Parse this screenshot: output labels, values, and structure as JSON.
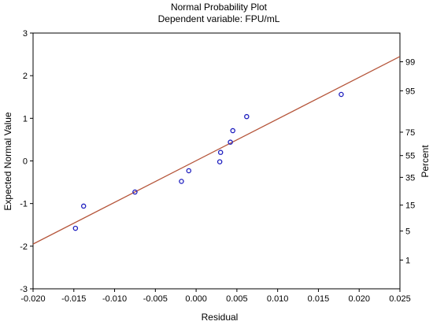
{
  "chart_data": {
    "type": "scatter",
    "title": "Normal Probability Plot",
    "subtitle": "Dependent variable: FPU/mL",
    "xlabel": "Residual",
    "ylabel": "Expected Normal Value",
    "ylabel_right": "Percent",
    "xlim": [
      -0.02,
      0.025
    ],
    "ylim": [
      -3,
      3
    ],
    "x_ticks": [
      -0.02,
      -0.015,
      -0.01,
      -0.005,
      0.0,
      0.005,
      0.01,
      0.015,
      0.02,
      0.025
    ],
    "x_tick_labels": [
      "-0.020",
      "-0.015",
      "-0.010",
      "-0.005",
      "0.000",
      "0.005",
      "0.010",
      "0.015",
      "0.020",
      "0.025"
    ],
    "y_ticks": [
      -3,
      -2,
      -1,
      0,
      1,
      2,
      3
    ],
    "y_tick_labels": [
      "-3",
      "-2",
      "-1",
      "0",
      "1",
      "2",
      "3"
    ],
    "right_axis_percent": [
      1,
      5,
      15,
      35,
      55,
      75,
      95,
      99
    ],
    "right_axis_labels": [
      "1",
      "5",
      "15",
      "35",
      "55",
      "75",
      "95",
      "99"
    ],
    "points": [
      {
        "x": -0.0148,
        "y": -1.58
      },
      {
        "x": -0.0138,
        "y": -1.06
      },
      {
        "x": -0.0075,
        "y": -0.73
      },
      {
        "x": -0.0018,
        "y": -0.48
      },
      {
        "x": -0.0009,
        "y": -0.23
      },
      {
        "x": 0.0029,
        "y": -0.02
      },
      {
        "x": 0.003,
        "y": 0.2
      },
      {
        "x": 0.0042,
        "y": 0.44
      },
      {
        "x": 0.0045,
        "y": 0.71
      },
      {
        "x": 0.0062,
        "y": 1.04
      },
      {
        "x": 0.0178,
        "y": 1.56
      }
    ],
    "fit_line": {
      "x": [
        -0.02,
        0.025
      ],
      "y": [
        -1.95,
        2.45
      ]
    },
    "grid": false,
    "colors": {
      "points": "#1f1fbf",
      "fit_line": "#b5553a",
      "axes": "#000000",
      "background": "#ffffff"
    }
  }
}
